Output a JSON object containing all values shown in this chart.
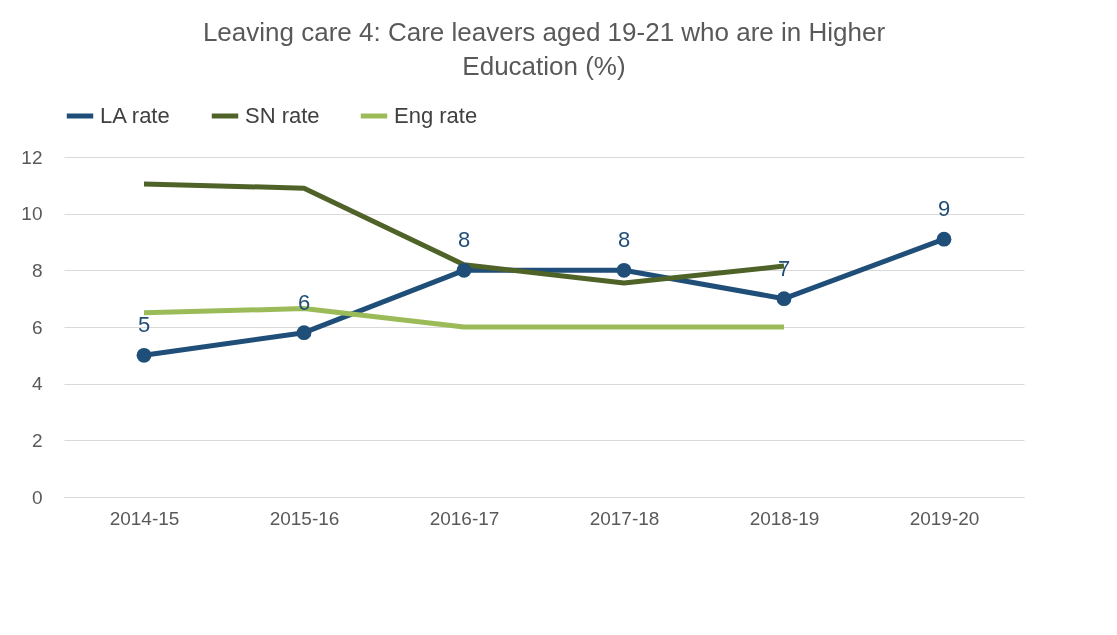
{
  "chart_data": {
    "type": "line",
    "title": "Leaving care 4: Care leavers aged 19-21 who are in Higher Education (%)",
    "categories": [
      "2014-15",
      "2015-16",
      "2016-17",
      "2017-18",
      "2018-19",
      "2019-20"
    ],
    "series": [
      {
        "name": "LA rate",
        "color": "#1f4e79",
        "marker": "circle",
        "values": [
          5,
          5.8,
          8,
          8,
          7,
          9.1
        ],
        "value_labels": [
          "5",
          "6",
          "8",
          "8",
          "7",
          "9"
        ]
      },
      {
        "name": "SN rate",
        "color": "#4f6228",
        "marker": "none",
        "values": [
          11.05,
          10.9,
          8.2,
          7.55,
          8.15,
          null
        ]
      },
      {
        "name": "Eng rate",
        "color": "#9bbb59",
        "marker": "none",
        "values": [
          6.5,
          6.65,
          6,
          6,
          6,
          null
        ]
      }
    ],
    "ylim": [
      0,
      12
    ],
    "yticks": [
      0,
      2,
      4,
      6,
      8,
      10,
      12
    ],
    "grid": "y",
    "legend": "top"
  }
}
